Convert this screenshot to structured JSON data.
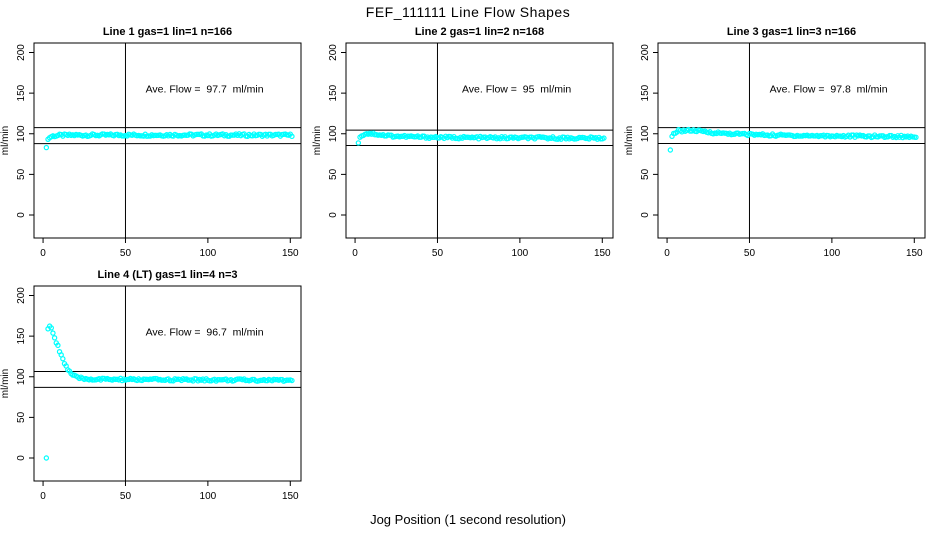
{
  "page": {
    "main_title": "FEF_111111  Line Flow Shapes",
    "shared_x_label": "Jog Position (1 second resolution)",
    "text_color": "#000000",
    "axis_color": "#000000",
    "marker_color": "#00FFFF"
  },
  "chart_data": [
    {
      "type": "scatter",
      "title": "Line 1 gas=1 lin=1 n=166",
      "annotation": "Ave. Flow =  97.7  ml/min",
      "ave_flow_ml_min": 97.7,
      "n": 166,
      "ylabel": "ml/min",
      "x_ticks": [
        0,
        50,
        100,
        150
      ],
      "y_ticks": [
        0,
        50,
        100,
        150,
        200
      ],
      "xlim": [
        -5.5,
        156.5
      ],
      "ylim": [
        -28.3,
        211.7
      ],
      "vline_x": 50,
      "hlines_y": [
        107.5,
        87.9
      ],
      "annotation_xy": [
        98,
        151
      ],
      "marker": "open-circle",
      "marker_color": "#00FFFF",
      "jitter": 3,
      "outliers": [
        [
          2,
          83
        ]
      ],
      "profile": [
        [
          3,
          93
        ],
        [
          4,
          95.5
        ],
        [
          5,
          96.5
        ],
        [
          7,
          97.5
        ],
        [
          10,
          98
        ],
        [
          20,
          98.3
        ],
        [
          40,
          98.4
        ],
        [
          80,
          98.5
        ],
        [
          120,
          98.4
        ],
        [
          151,
          98.3
        ]
      ]
    },
    {
      "type": "scatter",
      "title": "Line 2 gas=1 lin=2 n=168",
      "annotation": "Ave. Flow =  95  ml/min",
      "ave_flow_ml_min": 95,
      "n": 168,
      "ylabel": "ml/min",
      "x_ticks": [
        0,
        50,
        100,
        150
      ],
      "y_ticks": [
        0,
        50,
        100,
        150,
        200
      ],
      "xlim": [
        -5.5,
        156.5
      ],
      "ylim": [
        -28.3,
        211.7
      ],
      "vline_x": 50,
      "hlines_y": [
        104.5,
        85.5
      ],
      "annotation_xy": [
        98,
        151
      ],
      "marker": "open-circle",
      "marker_color": "#00FFFF",
      "jitter": 3,
      "outliers": [],
      "profile": [
        [
          2,
          90
        ],
        [
          3,
          95
        ],
        [
          4,
          98
        ],
        [
          6,
          100
        ],
        [
          9,
          100.5
        ],
        [
          13,
          99.5
        ],
        [
          18,
          98
        ],
        [
          25,
          97
        ],
        [
          40,
          96
        ],
        [
          60,
          95.3
        ],
        [
          90,
          95
        ],
        [
          120,
          94.8
        ],
        [
          151,
          94.5
        ]
      ]
    },
    {
      "type": "scatter",
      "title": "Line 3 gas=1 lin=3 n=166",
      "annotation": "Ave. Flow =  97.8  ml/min",
      "ave_flow_ml_min": 97.8,
      "n": 166,
      "ylabel": "ml/min",
      "x_ticks": [
        0,
        50,
        100,
        150
      ],
      "y_ticks": [
        0,
        50,
        100,
        150,
        200
      ],
      "xlim": [
        -5.5,
        156.5
      ],
      "ylim": [
        -28.3,
        211.7
      ],
      "vline_x": 50,
      "hlines_y": [
        107.6,
        88
      ],
      "annotation_xy": [
        98,
        151
      ],
      "marker": "open-circle",
      "marker_color": "#00FFFF",
      "jitter": 3,
      "outliers": [
        [
          2,
          80
        ]
      ],
      "profile": [
        [
          3,
          96
        ],
        [
          4,
          100
        ],
        [
          5,
          102
        ],
        [
          7,
          103.5
        ],
        [
          10,
          104
        ],
        [
          15,
          104
        ],
        [
          20,
          103
        ],
        [
          30,
          101
        ],
        [
          45,
          99.5
        ],
        [
          65,
          98.3
        ],
        [
          90,
          97.5
        ],
        [
          120,
          97
        ],
        [
          151,
          96.5
        ]
      ]
    },
    {
      "type": "scatter",
      "title": "Line 4 (LT) gas=1 lin=4 n=3",
      "annotation": "Ave. Flow =  96.7  ml/min",
      "ave_flow_ml_min": 96.7,
      "n": 3,
      "ylabel": "ml/min",
      "x_ticks": [
        0,
        50,
        100,
        150
      ],
      "y_ticks": [
        0,
        50,
        100,
        150,
        200
      ],
      "xlim": [
        -5.5,
        156.5
      ],
      "ylim": [
        -28.3,
        211.7
      ],
      "vline_x": 50,
      "hlines_y": [
        106.4,
        87
      ],
      "annotation_xy": [
        98,
        151
      ],
      "marker": "open-circle",
      "marker_color": "#00FFFF",
      "jitter": 3,
      "outliers": [
        [
          2,
          0
        ]
      ],
      "profile": [
        [
          3,
          159
        ],
        [
          4,
          161
        ],
        [
          5,
          159
        ],
        [
          6,
          154
        ],
        [
          7,
          148
        ],
        [
          8,
          143
        ],
        [
          9,
          138
        ],
        [
          10,
          132
        ],
        [
          11,
          127
        ],
        [
          12,
          122
        ],
        [
          13,
          117
        ],
        [
          14,
          113
        ],
        [
          15,
          109
        ],
        [
          16,
          106
        ],
        [
          17,
          104
        ],
        [
          18,
          102
        ],
        [
          19,
          100.5
        ],
        [
          20,
          99.5
        ],
        [
          22,
          98.5
        ],
        [
          25,
          97.5
        ],
        [
          30,
          97
        ],
        [
          40,
          96.7
        ],
        [
          60,
          96.4
        ],
        [
          90,
          96.2
        ],
        [
          120,
          96
        ],
        [
          151,
          95.8
        ]
      ]
    }
  ]
}
